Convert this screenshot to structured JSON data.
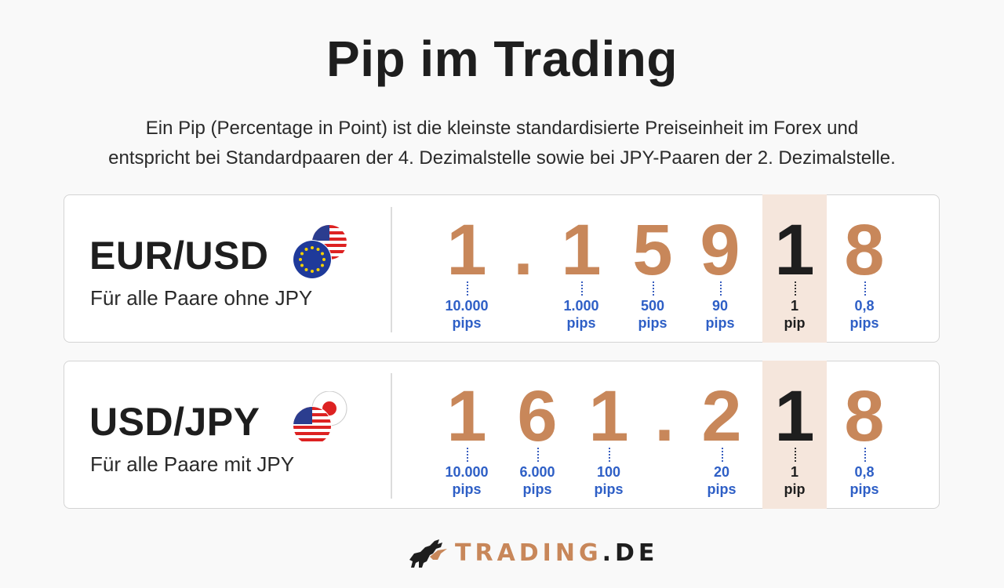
{
  "title": "Pip im Trading",
  "subtitle_line1": "Ein Pip (Percentage in Point) ist die kleinste standardisierte Preiseinheit im Forex und",
  "subtitle_line2": "entspricht bei Standardpaaren der 4. Dezimalstelle sowie bei JPY-Paaren der 2. Dezimalstelle.",
  "colors": {
    "digit": "#c8875a",
    "highlight_digit": "#1e1e1e",
    "pip_label": "#2e5fc6",
    "highlight_bg": "#f5e6dc"
  },
  "pairs": [
    {
      "name": "EUR/USD",
      "sub": "Für alle Paare ohne JPY",
      "flags": [
        "eu-flag-icon",
        "us-flag-icon"
      ],
      "chars": [
        "1",
        ".",
        "1",
        "5",
        "9",
        "1",
        "8"
      ],
      "labels": [
        {
          "value": "10.000",
          "unit": "pips"
        },
        {
          "value": "1.000",
          "unit": "pips"
        },
        {
          "value": "500",
          "unit": "pips"
        },
        {
          "value": "90",
          "unit": "pips"
        },
        {
          "value": "1",
          "unit": "pip"
        },
        {
          "value": "0,8",
          "unit": "pips"
        }
      ]
    },
    {
      "name": "USD/JPY",
      "sub": "Für alle Paare mit JPY",
      "flags": [
        "us-flag-icon",
        "jp-flag-icon"
      ],
      "chars": [
        "1",
        "6",
        "1",
        ".",
        "2",
        "1",
        "8"
      ],
      "labels": [
        {
          "value": "10.000",
          "unit": "pips"
        },
        {
          "value": "6.000",
          "unit": "pips"
        },
        {
          "value": "100",
          "unit": "pips"
        },
        {
          "value": "20",
          "unit": "pips"
        },
        {
          "value": "1",
          "unit": "pip"
        },
        {
          "value": "0,8",
          "unit": "pips"
        }
      ]
    }
  ],
  "logo": {
    "part1": "TRADING",
    "part2": ".DE",
    "icon": "bull-icon"
  }
}
